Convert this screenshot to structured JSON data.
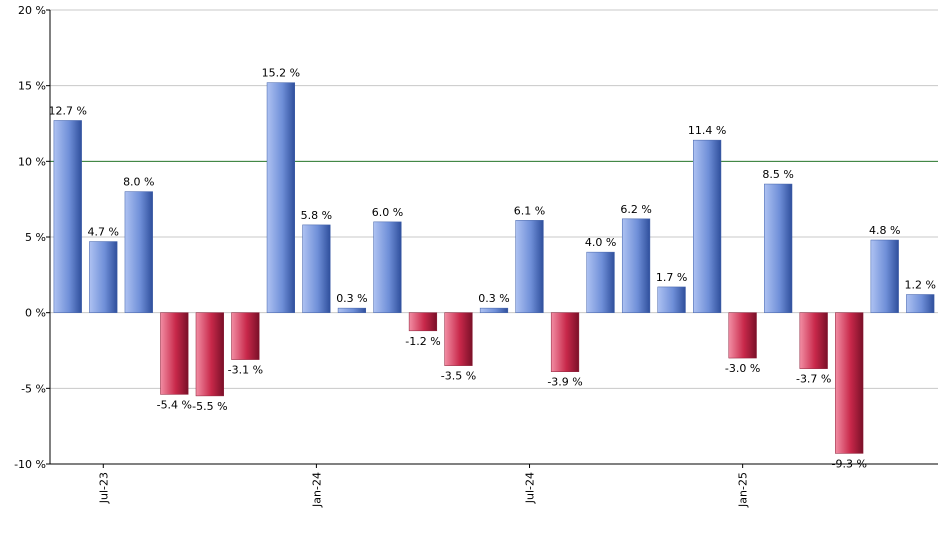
{
  "chart_data": {
    "type": "bar",
    "values": [
      12.7,
      4.7,
      8.0,
      -5.4,
      -5.5,
      -3.1,
      15.2,
      5.8,
      0.3,
      6.0,
      -1.2,
      -3.5,
      0.3,
      6.1,
      -3.9,
      4.0,
      6.2,
      1.7,
      11.4,
      -3.0,
      8.5,
      -3.7,
      -9.3,
      4.8,
      1.2
    ],
    "value_labels": [
      "12.7 %",
      "4.7 %",
      "8.0 %",
      "-5.4 %",
      "-5.5 %",
      "-3.1 %",
      "15.2 %",
      "5.8 %",
      "0.3 %",
      "6.0 %",
      "-1.2 %",
      "-3.5 %",
      "0.3 %",
      "6.1 %",
      "-3.9 %",
      "4.0 %",
      "6.2 %",
      "1.7 %",
      "11.4 %",
      "-3.0 %",
      "8.5 %",
      "-3.7 %",
      "-9.3 %",
      "4.8 %",
      "1.2 %"
    ],
    "x_ticks": [
      {
        "index": 1,
        "label": "Jul-23"
      },
      {
        "index": 7,
        "label": "Jan-24"
      },
      {
        "index": 13,
        "label": "Jul-24"
      },
      {
        "index": 19,
        "label": "Jan-25"
      }
    ],
    "y_ticks": [
      {
        "value": 20,
        "label": "20 %"
      },
      {
        "value": 15,
        "label": "15 %"
      },
      {
        "value": 10,
        "label": "10 %"
      },
      {
        "value": 5,
        "label": "5 %"
      },
      {
        "value": 0,
        "label": "0 %"
      },
      {
        "value": -5,
        "label": "-5 %"
      },
      {
        "value": -10,
        "label": "-10 %"
      }
    ],
    "ylim": [
      -10,
      20
    ],
    "reference_line": 10,
    "grid": true,
    "colors": {
      "positive": "#6f8fd8",
      "negative": "#c8284a",
      "reference_line": "#2e7d32",
      "grid": "#c8c8c8"
    }
  }
}
